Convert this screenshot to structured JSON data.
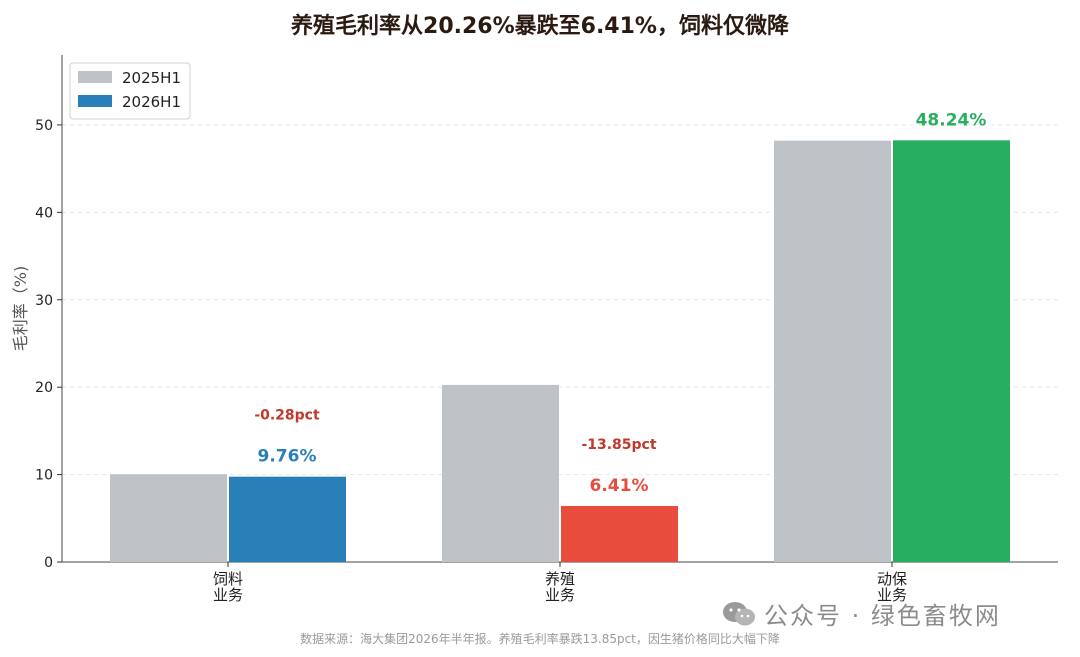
{
  "title": "养殖毛利率从20.26%暴跌至6.41%，饲料仅微降",
  "footer": "数据来源：海大集团2026年半年报。养殖毛利率暴跌13.85pct，因生猪价格同比大幅下降",
  "watermark": {
    "text": "公众号 · 绿色畜牧网",
    "icon": "wechat-icon"
  },
  "colors": {
    "base_series": "#bdc3c7",
    "feed": "#2980b9",
    "breeding": "#e74c3c",
    "animal_health": "#27ae60",
    "change_label": "#c0392b"
  },
  "chart_data": {
    "type": "bar",
    "categories": [
      [
        "饲料",
        "业务"
      ],
      [
        "养殖",
        "业务"
      ],
      [
        "动保",
        "业务"
      ]
    ],
    "series": [
      {
        "name": "2025H1",
        "values": [
          10.04,
          20.26,
          48.2
        ]
      },
      {
        "name": "2026H1",
        "values": [
          9.76,
          6.41,
          48.24
        ]
      }
    ],
    "value_labels": [
      "9.76%",
      "6.41%",
      "48.24%"
    ],
    "change_labels": [
      "-0.28pct",
      "-13.85pct",
      ""
    ],
    "ylabel": "毛利率（%)",
    "ylim": [
      0,
      58
    ],
    "yticks": [
      0,
      10,
      20,
      30,
      40,
      50
    ],
    "grid": true,
    "legend": "top-left"
  }
}
